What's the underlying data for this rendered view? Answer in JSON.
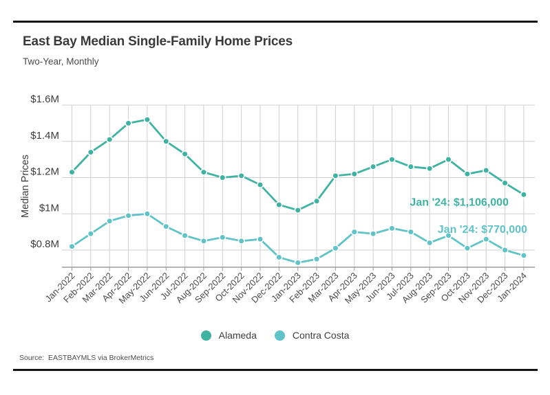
{
  "page": {
    "title": "East Bay Median Single-Family Home Prices",
    "subtitle": "Two-Year, Monthly",
    "source": "Source:  EASTBAYMLS via BrokerMetrics"
  },
  "colors": {
    "alameda": "#3fb3a2",
    "contra_costa": "#5fc3c7",
    "gridline": "#cfcfcf",
    "axis": "#9b9b9b",
    "text_dark": "#3d3d3d",
    "text_medium": "#4a4a4a",
    "rule": "#141414"
  },
  "chart_data": {
    "type": "line",
    "title": "East Bay Median Single-Family Home Prices",
    "subtitle": "Two-Year, Monthly",
    "xlabel": "",
    "ylabel": "Median Prices",
    "ylim": [
      0.7,
      1.6
    ],
    "grid": true,
    "legend_position": "bottom",
    "y_ticks": [
      {
        "label": "$1.6M",
        "value": 1.6
      },
      {
        "label": "$1.4M",
        "value": 1.4
      },
      {
        "label": "$1.2M",
        "value": 1.2
      },
      {
        "label": "$1M",
        "value": 1.0
      },
      {
        "label": "$0.8M",
        "value": 0.8
      }
    ],
    "categories": [
      "Jan-2022",
      "Feb-2022",
      "Mar-2022",
      "Apr-2022",
      "May-2022",
      "Jun-2022",
      "Jul-2022",
      "Aug-2022",
      "Sep-2022",
      "Oct-2022",
      "Nov-2022",
      "Dec-2022",
      "Jan-2023",
      "Feb-2023",
      "Mar-2023",
      "Apr-2023",
      "May-2023",
      "Jun-2023",
      "Jul-2023",
      "Aug-2023",
      "Sep-2023",
      "Oct-2023",
      "Nov-2023",
      "Dec-2023",
      "Jan-2024"
    ],
    "series": [
      {
        "name": "Alameda",
        "color": "#3fb3a2",
        "unit": "$M",
        "values": [
          1.23,
          1.34,
          1.41,
          1.5,
          1.52,
          1.4,
          1.33,
          1.23,
          1.2,
          1.21,
          1.16,
          1.05,
          1.02,
          1.07,
          1.21,
          1.22,
          1.26,
          1.3,
          1.26,
          1.25,
          1.3,
          1.22,
          1.24,
          1.17,
          1.106
        ]
      },
      {
        "name": "Contra Costa",
        "color": "#5fc3c7",
        "unit": "$M",
        "values": [
          0.82,
          0.89,
          0.96,
          0.99,
          1.0,
          0.93,
          0.88,
          0.85,
          0.87,
          0.85,
          0.86,
          0.76,
          0.73,
          0.75,
          0.81,
          0.9,
          0.89,
          0.92,
          0.9,
          0.84,
          0.88,
          0.81,
          0.86,
          0.8,
          0.77
        ]
      }
    ],
    "annotations": [
      {
        "text": "Jan '24: $1,106,000",
        "series": "Alameda",
        "target_month": "Jan-2024",
        "color": "#3fb3a2"
      },
      {
        "text": "Jan '24: $770,000",
        "series": "Contra Costa",
        "target_month": "Jan-2024",
        "color": "#5fc3c7"
      }
    ]
  }
}
